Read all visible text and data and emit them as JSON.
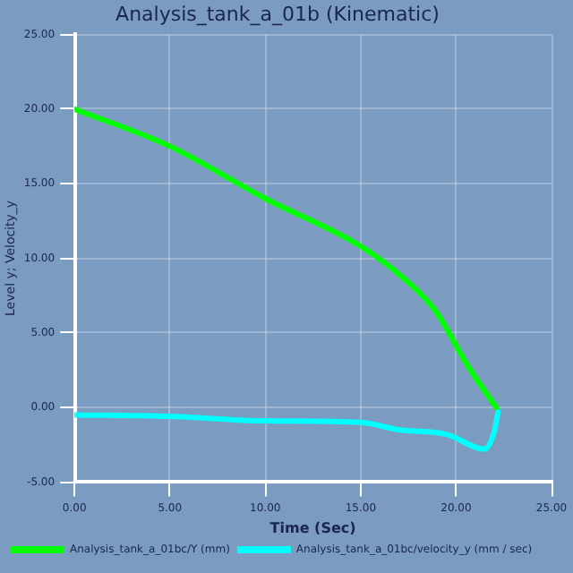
{
  "chart_data": {
    "type": "line",
    "title": "Analysis_tank_a_01b (Kinematic)",
    "xlabel": "Time (Sec)",
    "ylabel": "Level y; Velocity_y",
    "xlim": [
      0,
      25
    ],
    "xticks": [
      {
        "value": 0,
        "label": "0.00"
      },
      {
        "value": 5,
        "label": "5.00"
      },
      {
        "value": 10,
        "label": "10.00"
      },
      {
        "value": 15,
        "label": "15.00"
      },
      {
        "value": 20,
        "label": "20.00"
      },
      {
        "value": 25,
        "label": "25.00"
      }
    ],
    "ylim": [
      -5,
      25
    ],
    "yticks": [
      {
        "value": -5,
        "label": "-5.00"
      },
      {
        "value": 0,
        "label": "0.00"
      },
      {
        "value": 5,
        "label": "5.00"
      },
      {
        "value": 10,
        "label": "10.00"
      },
      {
        "value": 15,
        "label": "15.00"
      },
      {
        "value": 20,
        "label": "20.00"
      },
      {
        "value": 25,
        "label": "25.00"
      }
    ],
    "grid": true,
    "legend": "bottom left",
    "marker": "none",
    "line_style": "solid",
    "series": [
      {
        "name": "Analysis_tank_a_01bc/Y (mm)",
        "color": "#00ff00",
        "x": [
          0,
          5,
          10,
          15,
          17.3,
          18.9,
          20.7,
          22.1
        ],
        "values": [
          20,
          17.5,
          14,
          10.8,
          8.6,
          6.5,
          2.6,
          0
        ]
      },
      {
        "name": "Analysis_tank_a_01bc/velocity_y (mm / sec)",
        "color": "#00ffff",
        "x": [
          0,
          5,
          10,
          15,
          17,
          19.5,
          21.5,
          22,
          22.2
        ],
        "values": [
          -0.5,
          -0.6,
          -0.9,
          -1,
          -1.5,
          -1.8,
          -2.8,
          -1.6,
          -0.3
        ]
      }
    ]
  }
}
